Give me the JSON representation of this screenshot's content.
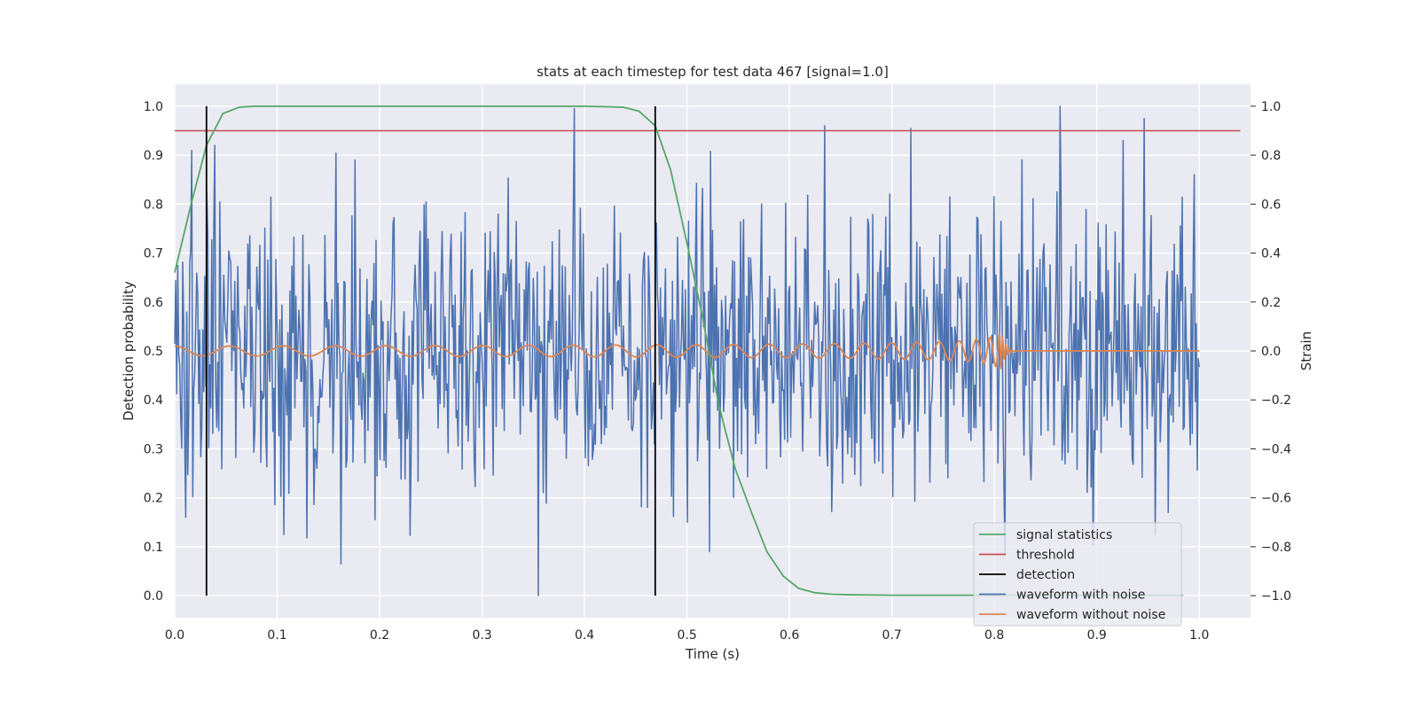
{
  "chart_data": {
    "type": "line",
    "title": "stats at each timestep for test data 467 [signal=1.0]",
    "xlabel": "Time (s)",
    "ylabel": "Detection probability",
    "ylabel_right": "Strain",
    "xlim": [
      0.0,
      1.05
    ],
    "ylim": [
      -0.045,
      1.045
    ],
    "ylim_right": [
      -1.09,
      1.09
    ],
    "x_ticks": [
      "0.0",
      "0.1",
      "0.2",
      "0.3",
      "0.4",
      "0.5",
      "0.6",
      "0.7",
      "0.8",
      "0.9",
      "1.0"
    ],
    "y_ticks": [
      "0.0",
      "0.1",
      "0.2",
      "0.3",
      "0.4",
      "0.5",
      "0.6",
      "0.7",
      "0.8",
      "0.9",
      "1.0"
    ],
    "y_ticks_right": [
      "−1.0",
      "−0.8",
      "−0.6",
      "−0.4",
      "−0.2",
      "0.0",
      "0.2",
      "0.4",
      "0.6",
      "0.8",
      "1.0"
    ],
    "grid": true,
    "legend_position": "lower-right",
    "series": [
      {
        "name": "signal statistics",
        "color": "#55a868",
        "axis": "left",
        "x": [
          0.0,
          0.016,
          0.031,
          0.047,
          0.063,
          0.078,
          0.1,
          0.2,
          0.3,
          0.4,
          0.438,
          0.453,
          0.469,
          0.484,
          0.5,
          0.516,
          0.531,
          0.547,
          0.563,
          0.578,
          0.594,
          0.609,
          0.625,
          0.641,
          0.656,
          0.7,
          0.8,
          0.9,
          0.984
        ],
        "y": [
          0.66,
          0.8,
          0.92,
          0.985,
          0.998,
          1.0,
          1.0,
          1.0,
          1.0,
          1.0,
          0.998,
          0.99,
          0.96,
          0.87,
          0.72,
          0.56,
          0.39,
          0.26,
          0.17,
          0.09,
          0.04,
          0.015,
          0.006,
          0.003,
          0.002,
          0.001,
          0.001,
          0.001,
          0.001
        ]
      },
      {
        "name": "threshold",
        "color": "#c44e52",
        "axis": "left",
        "x": [
          0.0,
          1.04
        ],
        "y": [
          0.95,
          0.95
        ]
      },
      {
        "name": "detection",
        "color": "#000000",
        "axis": "left",
        "segments": [
          {
            "x": 0.031,
            "y0": 0.0,
            "y1": 1.0
          },
          {
            "x": 0.469,
            "y0": 0.0,
            "y1": 1.0
          }
        ]
      },
      {
        "name": "waveform with noise",
        "color": "#4c72b0",
        "axis": "right",
        "x_start": 0.0,
        "x_end": 1.0,
        "n_points": 1024,
        "approx_amplitude": 0.3,
        "range": [
          -1.0,
          1.0
        ],
        "peaks": [
          {
            "x": 0.011,
            "y": -0.68
          },
          {
            "x": 0.031,
            "y": 0.65
          },
          {
            "x": 0.039,
            "y": 0.84
          },
          {
            "x": 0.162,
            "y": -0.87
          },
          {
            "x": 0.176,
            "y": 0.78
          },
          {
            "x": 0.355,
            "y": -1.0
          },
          {
            "x": 0.39,
            "y": 0.99
          },
          {
            "x": 0.5,
            "y": -0.7
          },
          {
            "x": 0.522,
            "y": -0.82
          },
          {
            "x": 0.634,
            "y": 0.92
          },
          {
            "x": 0.67,
            "y": -0.55
          },
          {
            "x": 0.81,
            "y": -0.83
          },
          {
            "x": 0.864,
            "y": 1.0
          },
          {
            "x": 0.926,
            "y": 0.86
          },
          {
            "x": 0.97,
            "y": -0.66
          },
          {
            "x": 0.995,
            "y": 0.72
          }
        ]
      },
      {
        "name": "waveform without noise",
        "color": "#dd8452",
        "axis": "right",
        "x_start": 0.0,
        "x_end": 1.0,
        "chirp_merger_time": 0.805,
        "amplitude_start": 0.02,
        "amplitude_peak": 0.12,
        "y_after_merger": 0.0
      }
    ]
  }
}
